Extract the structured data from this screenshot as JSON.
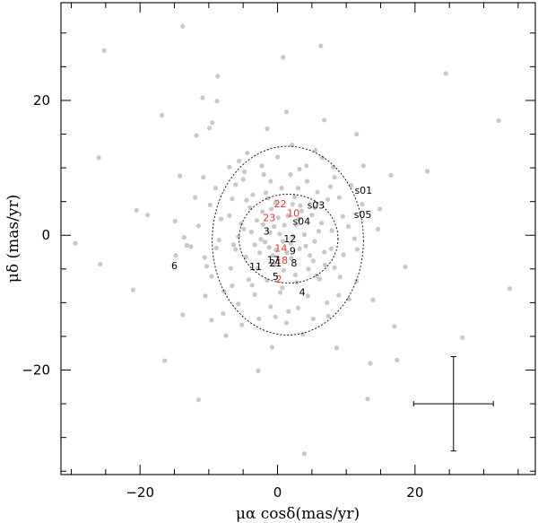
{
  "chart_data": {
    "type": "scatter",
    "title": "",
    "xlabel": "μα cosδ(mas/yr)",
    "ylabel": "μδ (mas/yr)",
    "xlim": [
      -31.5,
      37.5
    ],
    "ylim": [
      -35.5,
      34.5
    ],
    "x_ticks": [
      -20,
      0,
      20
    ],
    "y_ticks": [
      -20,
      0,
      20
    ],
    "x_tick_labels": [
      "−20",
      "0",
      "20"
    ],
    "y_tick_labels": [
      "−20",
      "0",
      "20"
    ],
    "grid": false,
    "colors": {
      "points": "#c8c8c8",
      "members": "#e8312f",
      "labels": "#000000",
      "axes": "#000000"
    },
    "ellipses": [
      {
        "name": "outer",
        "center": [
          1.5,
          -0.8
        ],
        "radius_x": 11,
        "radius_y": 14
      },
      {
        "name": "inner",
        "center": [
          1.6,
          -0.5
        ],
        "radius_x": 7.2,
        "radius_y": 6.6
      }
    ],
    "error_bar": {
      "x": 25.6,
      "y": -25,
      "x_error": 5.8,
      "y_error": 7
    },
    "labeled_stars": [
      {
        "label": "22",
        "x": 0.4,
        "y": 4.7,
        "color": "red"
      },
      {
        "label": "10",
        "x": 2.3,
        "y": 3.3,
        "color": "red"
      },
      {
        "label": "23",
        "x": -1.2,
        "y": 2.6,
        "color": "red"
      },
      {
        "label": "14",
        "x": 0.5,
        "y": -1.9,
        "color": "red"
      },
      {
        "label": "18",
        "x": 0.6,
        "y": -3.7,
        "color": "red"
      },
      {
        "label": "2",
        "x": 0.2,
        "y": -6.5,
        "color": "red"
      },
      {
        "label": "s03",
        "x": 5.6,
        "y": 4.5,
        "color": "black"
      },
      {
        "label": "s04",
        "x": 3.5,
        "y": 2.1,
        "color": "black"
      },
      {
        "label": "s01",
        "x": 12.5,
        "y": 6.7,
        "color": "black"
      },
      {
        "label": "s05",
        "x": 12.4,
        "y": 3.1,
        "color": "black"
      },
      {
        "label": "3",
        "x": -1.6,
        "y": 0.6,
        "color": "black"
      },
      {
        "label": "12",
        "x": 1.8,
        "y": -0.5,
        "color": "black"
      },
      {
        "label": "9",
        "x": 2.2,
        "y": -2.3,
        "color": "black"
      },
      {
        "label": "17",
        "x": -0.6,
        "y": -3.6,
        "color": "black"
      },
      {
        "label": "21",
        "x": -0.3,
        "y": -4.1,
        "color": "black"
      },
      {
        "label": "8",
        "x": 2.4,
        "y": -4.1,
        "color": "black"
      },
      {
        "label": "11",
        "x": -3.2,
        "y": -4.6,
        "color": "black"
      },
      {
        "label": "5",
        "x": -0.3,
        "y": -6.1,
        "color": "black"
      },
      {
        "label": "4",
        "x": 3.6,
        "y": -8.4,
        "color": "black"
      },
      {
        "label": "6",
        "x": -15.0,
        "y": -4.5,
        "color": "black"
      }
    ],
    "points": [
      [
        -13.8,
        31.0
      ],
      [
        -25.2,
        27.4
      ],
      [
        6.3,
        28.1
      ],
      [
        0.8,
        26.4
      ],
      [
        24.5,
        24.0
      ],
      [
        -8.7,
        23.6
      ],
      [
        -10.9,
        20.4
      ],
      [
        -8.8,
        19.9
      ],
      [
        1.3,
        18.3
      ],
      [
        -16.8,
        17.8
      ],
      [
        -9.5,
        16.7
      ],
      [
        -9.9,
        15.9
      ],
      [
        6.8,
        17.1
      ],
      [
        32.2,
        17.0
      ],
      [
        -11.8,
        14.8
      ],
      [
        -1.5,
        15.8
      ],
      [
        11.5,
        15.0
      ],
      [
        -26.0,
        11.5
      ],
      [
        -5.6,
        11.0
      ],
      [
        2.1,
        13.4
      ],
      [
        21.8,
        9.5
      ],
      [
        -14.2,
        8.8
      ],
      [
        -10.8,
        8.6
      ],
      [
        -4.8,
        9.4
      ],
      [
        -2.3,
        10.3
      ],
      [
        3.2,
        9.8
      ],
      [
        8.1,
        10.1
      ],
      [
        16.5,
        8.9
      ],
      [
        -9.0,
        7.0
      ],
      [
        -5.0,
        8.3
      ],
      [
        -1.0,
        8.0
      ],
      [
        0.6,
        7.0
      ],
      [
        4.3,
        8.0
      ],
      [
        7.7,
        7.2
      ],
      [
        10.7,
        7.4
      ],
      [
        -3.6,
        6.0
      ],
      [
        -1.4,
        5.5
      ],
      [
        2.5,
        5.7
      ],
      [
        5.8,
        6.4
      ],
      [
        -6.6,
        5.4
      ],
      [
        -4.0,
        4.1
      ],
      [
        -0.3,
        4.8
      ],
      [
        3.3,
        4.4
      ],
      [
        7.3,
        5.3
      ],
      [
        -20.5,
        3.7
      ],
      [
        -7.0,
        2.9
      ],
      [
        -2.2,
        3.5
      ],
      [
        1.5,
        2.9
      ],
      [
        5.0,
        3.0
      ],
      [
        9.5,
        2.8
      ],
      [
        14.9,
        3.9
      ],
      [
        -18.9,
        3.0
      ],
      [
        -5.3,
        1.7
      ],
      [
        -0.5,
        1.3
      ],
      [
        2.7,
        1.5
      ],
      [
        6.4,
        1.8
      ],
      [
        -3.8,
        0.5
      ],
      [
        0.3,
        0.2
      ],
      [
        3.9,
        0.1
      ],
      [
        7.9,
        0.7
      ],
      [
        -13.6,
        -0.3
      ],
      [
        -8.5,
        -0.7
      ],
      [
        -2.4,
        -0.6
      ],
      [
        1.9,
        -1.2
      ],
      [
        5.4,
        -0.9
      ],
      [
        11.2,
        -0.5
      ],
      [
        -13.2,
        -1.5
      ],
      [
        -6.1,
        -2.1
      ],
      [
        -1.2,
        -1.8
      ],
      [
        3.2,
        -2.0
      ],
      [
        6.8,
        -2.5
      ],
      [
        -29.4,
        -1.2
      ],
      [
        -4.6,
        -3.2
      ],
      [
        -0.7,
        -3.0
      ],
      [
        2.0,
        -3.4
      ],
      [
        5.2,
        -3.8
      ],
      [
        9.6,
        -2.9
      ],
      [
        -25.8,
        -4.3
      ],
      [
        -14.8,
        -3.0
      ],
      [
        -10.3,
        -4.6
      ],
      [
        -2.9,
        -4.9
      ],
      [
        0.9,
        -5.2
      ],
      [
        4.5,
        -5.0
      ],
      [
        8.3,
        -4.8
      ],
      [
        18.6,
        -4.7
      ],
      [
        -9.6,
        -6.1
      ],
      [
        -4.2,
        -6.6
      ],
      [
        -1.5,
        -6.7
      ],
      [
        2.8,
        -7.0
      ],
      [
        6.1,
        -6.5
      ],
      [
        11.5,
        -6.8
      ],
      [
        -21.0,
        -8.1
      ],
      [
        -7.8,
        -8.3
      ],
      [
        -3.3,
        -8.8
      ],
      [
        0.4,
        -8.5
      ],
      [
        4.4,
        -9.0
      ],
      [
        8.9,
        -8.9
      ],
      [
        33.8,
        -7.9
      ],
      [
        -5.7,
        -10.2
      ],
      [
        -1.0,
        -10.6
      ],
      [
        3.0,
        -10.8
      ],
      [
        7.2,
        -10.0
      ],
      [
        -13.8,
        -11.8
      ],
      [
        -9.6,
        -12.6
      ],
      [
        -2.7,
        -12.4
      ],
      [
        1.3,
        -13.0
      ],
      [
        5.2,
        -12.4
      ],
      [
        17.0,
        -13.5
      ],
      [
        -7.5,
        -14.9
      ],
      [
        3.7,
        -14.7
      ],
      [
        26.9,
        -15.2
      ],
      [
        -0.8,
        -16.6
      ],
      [
        8.6,
        -16.7
      ],
      [
        -16.4,
        -18.6
      ],
      [
        13.5,
        -19.0
      ],
      [
        17.4,
        -18.5
      ],
      [
        -2.8,
        -20.1
      ],
      [
        -11.5,
        -24.4
      ],
      [
        13.1,
        -24.3
      ],
      [
        3.9,
        -32.4
      ],
      [
        -6.4,
        -1.4
      ],
      [
        -3.0,
        2.2
      ],
      [
        -1.8,
        -1.0
      ],
      [
        -0.2,
        -2.2
      ],
      [
        1.0,
        1.5
      ],
      [
        2.3,
        -0.1
      ],
      [
        3.5,
        3.6
      ],
      [
        4.7,
        -3.0
      ],
      [
        0.1,
        2.6
      ],
      [
        -2.6,
        -2.6
      ],
      [
        -4.9,
        0.9
      ],
      [
        6.0,
        0.6
      ],
      [
        5.7,
        -6.0
      ],
      [
        -6.8,
        -4.9
      ],
      [
        0.7,
        -7.8
      ],
      [
        -1.7,
        6.3
      ],
      [
        9.0,
        5.6
      ],
      [
        -8.2,
        2.4
      ],
      [
        3.0,
        7.0
      ],
      [
        10.4,
        -9.5
      ],
      [
        -10.5,
        -9.0
      ],
      [
        12.5,
        10.3
      ],
      [
        -12.0,
        5.6
      ],
      [
        13.9,
        -9.6
      ],
      [
        -4.4,
        12.2
      ],
      [
        5.5,
        12.6
      ],
      [
        -7.9,
        -11.6
      ],
      [
        10.3,
        1.3
      ],
      [
        -11.5,
        1.4
      ],
      [
        9.1,
        -6.2
      ],
      [
        -6.1,
        7.5
      ],
      [
        1.6,
        -11.3
      ],
      [
        -3.7,
        -7.4
      ],
      [
        4.2,
        10.3
      ],
      [
        -2.0,
        9.0
      ],
      [
        7.8,
        -2.0
      ],
      [
        -8.9,
        -1.9
      ],
      [
        2.2,
        4.6
      ],
      [
        -0.4,
        -4.4
      ],
      [
        1.4,
        -2.6
      ],
      [
        3.1,
        2.4
      ],
      [
        -1.1,
        0.4
      ],
      [
        0.8,
        -0.9
      ],
      [
        -2.1,
        1.6
      ],
      [
        4.1,
        -1.6
      ],
      [
        -3.3,
        -1.4
      ],
      [
        2.6,
        -5.9
      ],
      [
        -0.9,
        3.9
      ],
      [
        5.4,
        4.1
      ],
      [
        -5.7,
        -0.2
      ],
      [
        6.9,
        -4.4
      ],
      [
        -4.5,
        5.2
      ],
      [
        1.9,
        9.0
      ],
      [
        -6.6,
        -7.5
      ],
      [
        8.3,
        8.6
      ],
      [
        -9.8,
        4.5
      ],
      [
        11.6,
        -2.1
      ],
      [
        -10.6,
        -3.3
      ],
      [
        0.0,
        11.6
      ],
      [
        -0.3,
        -12.1
      ],
      [
        6.5,
        11.5
      ],
      [
        -7.0,
        10.1
      ],
      [
        7.4,
        -12.0
      ],
      [
        -5.2,
        -13.3
      ],
      [
        12.3,
        4.6
      ],
      [
        -12.6,
        -1.7
      ],
      [
        14.6,
        0.9
      ],
      [
        -14.9,
        2.1
      ]
    ]
  }
}
